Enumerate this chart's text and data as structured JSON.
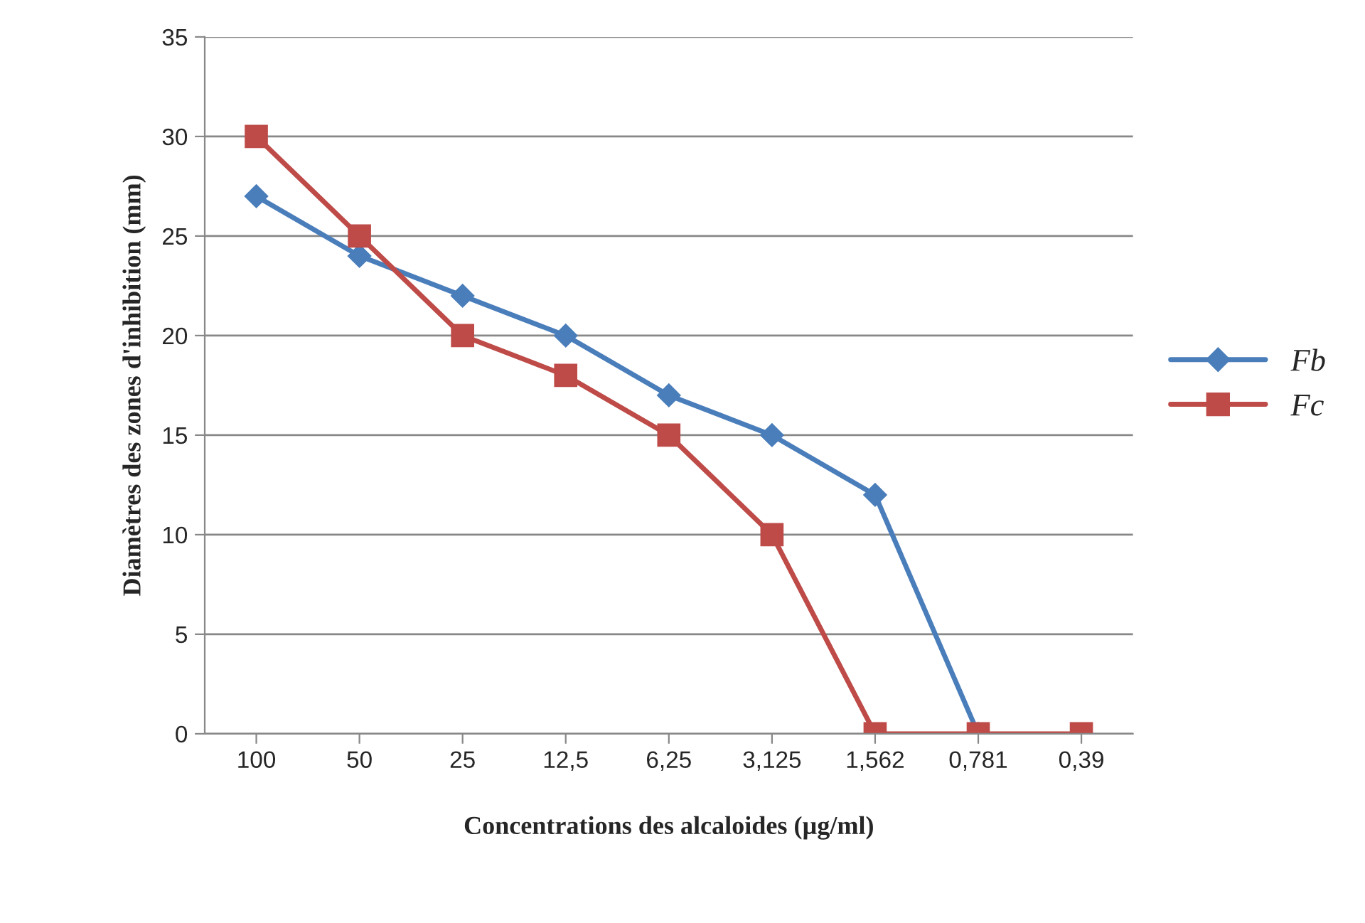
{
  "chart_data": {
    "type": "line",
    "xlabel": "Concentrations des alcaloides (µg/ml)",
    "ylabel": "Diamètres des zones d'inhibition (mm)",
    "categories": [
      "100",
      "50",
      "25",
      "12,5",
      "6,25",
      "3,125",
      "1,562",
      "0,781",
      "0,39"
    ],
    "series": [
      {
        "name": "Fb",
        "color": "#4a7ebb",
        "marker": "diamond",
        "values": [
          27,
          24,
          22,
          20,
          17,
          15,
          12,
          0,
          null
        ]
      },
      {
        "name": "Fc",
        "color": "#be4b48",
        "marker": "square",
        "values": [
          30,
          25,
          20,
          18,
          15,
          10,
          0,
          0,
          0
        ]
      }
    ],
    "ylim": [
      0,
      35
    ],
    "yticks": [
      0,
      5,
      10,
      15,
      20,
      25,
      30,
      35
    ],
    "grid": "y",
    "legend": "right",
    "line_style": "solid"
  }
}
